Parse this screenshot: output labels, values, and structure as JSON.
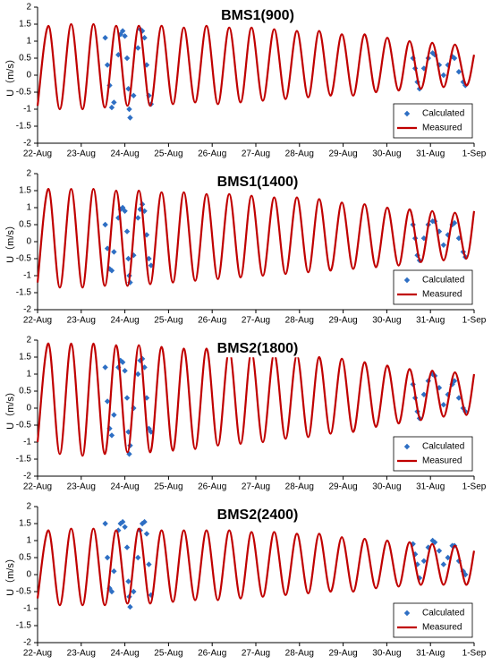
{
  "chart_data": [
    {
      "type": "line",
      "title": "BMS1(900)",
      "ylabel": "U（m/s）",
      "xlim": [
        0,
        10
      ],
      "ylim": [
        -2,
        2
      ],
      "yticks": [
        -2,
        -1.5,
        -1,
        -0.5,
        0,
        0.5,
        1,
        1.5,
        2
      ],
      "xticks": [
        {
          "value": 0,
          "label": "22-Aug"
        },
        {
          "value": 1,
          "label": "23-Aug"
        },
        {
          "value": 2,
          "label": "24-Aug"
        },
        {
          "value": 3,
          "label": "25-Aug"
        },
        {
          "value": 4,
          "label": "26-Aug"
        },
        {
          "value": 5,
          "label": "27-Aug"
        },
        {
          "value": 6,
          "label": "28-Aug"
        },
        {
          "value": 7,
          "label": "29-Aug"
        },
        {
          "value": 8,
          "label": "30-Aug"
        },
        {
          "value": 9,
          "label": "31-Aug"
        },
        {
          "value": 10,
          "label": "1-Sep"
        }
      ],
      "legend": "lower right",
      "series": [
        {
          "name": "Calculated",
          "color": "#2e6fc4",
          "mode": "markers",
          "x": [
            1.55,
            1.6,
            1.65,
            1.7,
            1.75,
            1.85,
            1.9,
            1.95,
            2.0,
            2.05,
            2.08,
            2.1,
            2.12,
            2.2,
            2.3,
            2.35,
            2.4,
            2.45,
            2.5,
            2.55,
            2.6,
            8.6,
            8.65,
            8.7,
            8.75,
            8.85,
            8.95,
            9.05,
            9.1,
            9.2,
            9.3,
            9.4,
            9.5,
            9.55,
            9.65,
            9.75,
            9.8
          ],
          "values": [
            1.1,
            0.3,
            -0.3,
            -0.95,
            -0.8,
            0.6,
            1.2,
            1.3,
            1.15,
            0.5,
            -0.4,
            -1.0,
            -1.25,
            -0.6,
            0.8,
            1.35,
            1.3,
            1.1,
            0.3,
            -0.6,
            -0.85,
            0.5,
            0.2,
            -0.2,
            -0.4,
            0.2,
            0.5,
            0.65,
            0.6,
            0.3,
            0.0,
            0.3,
            0.55,
            0.5,
            0.1,
            -0.2,
            -0.3
          ]
        },
        {
          "name": "Measured",
          "color": "#c00000",
          "mode": "line",
          "x": [
            0,
            0.25,
            0.51,
            0.77,
            1.03,
            1.28,
            1.54,
            1.8,
            2.06,
            2.32,
            2.58,
            2.84,
            3.1,
            3.35,
            3.61,
            3.87,
            4.13,
            4.39,
            4.65,
            4.9,
            5.16,
            5.42,
            5.68,
            5.94,
            6.2,
            6.45,
            6.71,
            6.97,
            7.23,
            7.49,
            7.75,
            8.01,
            8.27,
            8.52,
            8.78,
            9.04,
            9.3,
            9.56,
            9.82,
            10
          ],
          "values": [
            -0.9,
            1.45,
            -1.0,
            1.5,
            -1.0,
            1.5,
            -0.95,
            1.45,
            -0.9,
            1.45,
            -0.9,
            1.45,
            -0.85,
            1.4,
            -0.8,
            1.45,
            -0.85,
            1.4,
            -0.8,
            1.4,
            -0.75,
            1.35,
            -0.7,
            1.3,
            -0.65,
            1.3,
            -0.6,
            1.2,
            -0.6,
            1.2,
            -0.5,
            1.1,
            -0.45,
            1.0,
            -0.4,
            0.95,
            -0.35,
            0.9,
            -0.3,
            0.6
          ]
        }
      ]
    },
    {
      "type": "line",
      "title": "BMS1(1400)",
      "ylabel": "U（m/s）",
      "xlim": [
        0,
        10
      ],
      "ylim": [
        -2,
        2
      ],
      "yticks": [
        -2,
        -1.5,
        -1,
        -0.5,
        0,
        0.5,
        1,
        1.5,
        2
      ],
      "xticks": [
        {
          "value": 0,
          "label": "22-Aug"
        },
        {
          "value": 1,
          "label": "23-Aug"
        },
        {
          "value": 2,
          "label": "24-Aug"
        },
        {
          "value": 3,
          "label": "25-Aug"
        },
        {
          "value": 4,
          "label": "26-Aug"
        },
        {
          "value": 5,
          "label": "27-Aug"
        },
        {
          "value": 6,
          "label": "28-Aug"
        },
        {
          "value": 7,
          "label": "29-Aug"
        },
        {
          "value": 8,
          "label": "30-Aug"
        },
        {
          "value": 9,
          "label": "31-Aug"
        },
        {
          "value": 10,
          "label": "1-Sep"
        }
      ],
      "legend": "lower right",
      "series": [
        {
          "name": "Calculated",
          "color": "#2e6fc4",
          "mode": "markers",
          "x": [
            1.55,
            1.6,
            1.65,
            1.7,
            1.75,
            1.85,
            1.9,
            1.95,
            2.0,
            2.05,
            2.08,
            2.1,
            2.12,
            2.2,
            2.3,
            2.35,
            2.4,
            2.45,
            2.5,
            2.55,
            2.6,
            8.6,
            8.65,
            8.7,
            8.75,
            8.85,
            8.95,
            9.05,
            9.1,
            9.2,
            9.3,
            9.4,
            9.5,
            9.55,
            9.65,
            9.75,
            9.8
          ],
          "values": [
            0.5,
            -0.2,
            -0.8,
            -0.85,
            -0.3,
            0.7,
            0.95,
            1.0,
            0.9,
            0.3,
            -0.5,
            -1.0,
            -1.2,
            -0.4,
            0.7,
            0.95,
            1.1,
            0.9,
            0.2,
            -0.5,
            -0.7,
            0.5,
            0.1,
            -0.4,
            -0.55,
            0.1,
            0.5,
            0.6,
            0.6,
            0.3,
            -0.1,
            0.2,
            0.5,
            0.55,
            0.1,
            -0.3,
            -0.45
          ]
        },
        {
          "name": "Measured",
          "color": "#c00000",
          "mode": "line",
          "x": [
            0,
            0.25,
            0.51,
            0.77,
            1.03,
            1.28,
            1.54,
            1.8,
            2.06,
            2.32,
            2.58,
            2.84,
            3.1,
            3.35,
            3.61,
            3.87,
            4.13,
            4.39,
            4.65,
            4.9,
            5.16,
            5.42,
            5.68,
            5.94,
            6.2,
            6.45,
            6.71,
            6.97,
            7.23,
            7.49,
            7.75,
            8.01,
            8.27,
            8.52,
            8.78,
            9.04,
            9.3,
            9.56,
            9.82,
            10
          ],
          "values": [
            -1.2,
            1.55,
            -1.35,
            1.55,
            -1.35,
            1.55,
            -1.3,
            1.5,
            -1.3,
            1.5,
            -1.25,
            1.45,
            -1.2,
            1.45,
            -1.15,
            1.4,
            -1.1,
            1.4,
            -1.05,
            1.35,
            -1.0,
            1.3,
            -0.95,
            1.3,
            -0.9,
            1.25,
            -0.85,
            1.15,
            -0.8,
            1.1,
            -0.75,
            1.0,
            -0.7,
            0.95,
            -0.6,
            0.9,
            -0.55,
            0.85,
            -0.5,
            0.9
          ]
        }
      ]
    },
    {
      "type": "line",
      "title": "BMS2(1800)",
      "ylabel": "U（m/s）",
      "xlim": [
        0,
        10
      ],
      "ylim": [
        -2,
        2
      ],
      "yticks": [
        -2,
        -1.5,
        -1,
        -0.5,
        0,
        0.5,
        1,
        1.5,
        2
      ],
      "xticks": [
        {
          "value": 0,
          "label": "22-Aug"
        },
        {
          "value": 1,
          "label": "23-Aug"
        },
        {
          "value": 2,
          "label": "24-Aug"
        },
        {
          "value": 3,
          "label": "25-Aug"
        },
        {
          "value": 4,
          "label": "26-Aug"
        },
        {
          "value": 5,
          "label": "27-Aug"
        },
        {
          "value": 6,
          "label": "28-Aug"
        },
        {
          "value": 7,
          "label": "29-Aug"
        },
        {
          "value": 8,
          "label": "30-Aug"
        },
        {
          "value": 9,
          "label": "31-Aug"
        },
        {
          "value": 10,
          "label": "1-Sep"
        }
      ],
      "legend": "lower right",
      "series": [
        {
          "name": "Calculated",
          "color": "#2e6fc4",
          "mode": "markers",
          "x": [
            1.55,
            1.6,
            1.65,
            1.7,
            1.75,
            1.85,
            1.9,
            1.95,
            2.0,
            2.05,
            2.08,
            2.1,
            2.12,
            2.2,
            2.3,
            2.35,
            2.4,
            2.45,
            2.5,
            2.55,
            2.6,
            8.6,
            8.65,
            8.7,
            8.75,
            8.85,
            8.95,
            9.05,
            9.1,
            9.2,
            9.3,
            9.4,
            9.5,
            9.55,
            9.65,
            9.75,
            9.8
          ],
          "values": [
            1.2,
            0.2,
            -0.6,
            -0.8,
            -0.2,
            1.2,
            1.4,
            1.35,
            1.1,
            0.3,
            -0.7,
            -1.35,
            -1.1,
            0.0,
            1.0,
            1.4,
            1.45,
            1.2,
            0.3,
            -0.6,
            -0.7,
            0.7,
            0.3,
            -0.1,
            -0.3,
            0.4,
            0.8,
            1.0,
            0.95,
            0.6,
            0.1,
            0.4,
            0.7,
            0.8,
            0.3,
            0.0,
            -0.1
          ]
        },
        {
          "name": "Measured",
          "color": "#c00000",
          "mode": "line",
          "x": [
            0,
            0.25,
            0.51,
            0.77,
            1.03,
            1.28,
            1.54,
            1.8,
            2.06,
            2.32,
            2.58,
            2.84,
            3.1,
            3.35,
            3.61,
            3.87,
            4.13,
            4.39,
            4.65,
            4.9,
            5.16,
            5.42,
            5.68,
            5.94,
            6.2,
            6.45,
            6.71,
            6.97,
            7.23,
            7.49,
            7.75,
            8.01,
            8.27,
            8.52,
            8.78,
            9.04,
            9.3,
            9.56,
            9.82,
            10
          ],
          "values": [
            -1.0,
            1.9,
            -1.35,
            1.9,
            -1.4,
            1.9,
            -1.35,
            1.85,
            -1.3,
            1.85,
            -1.3,
            1.8,
            -1.25,
            1.75,
            -1.2,
            1.75,
            -1.1,
            1.7,
            -1.05,
            1.65,
            -1.0,
            1.6,
            -0.9,
            1.55,
            -0.85,
            1.5,
            -0.75,
            1.45,
            -0.7,
            1.35,
            -0.55,
            1.25,
            -0.45,
            1.15,
            -0.35,
            1.1,
            -0.25,
            1.05,
            -0.2,
            1.0
          ]
        }
      ]
    },
    {
      "type": "line",
      "title": "BMS2(2400)",
      "ylabel": "U（m/s）",
      "xlim": [
        0,
        10
      ],
      "ylim": [
        -2,
        2
      ],
      "yticks": [
        -2,
        -1.5,
        -1,
        -0.5,
        0,
        0.5,
        1,
        1.5,
        2
      ],
      "xticks": [
        {
          "value": 0,
          "label": "22-Aug"
        },
        {
          "value": 1,
          "label": "23-Aug"
        },
        {
          "value": 2,
          "label": "24-Aug"
        },
        {
          "value": 3,
          "label": "25-Aug"
        },
        {
          "value": 4,
          "label": "26-Aug"
        },
        {
          "value": 5,
          "label": "27-Aug"
        },
        {
          "value": 6,
          "label": "28-Aug"
        },
        {
          "value": 7,
          "label": "29-Aug"
        },
        {
          "value": 8,
          "label": "30-Aug"
        },
        {
          "value": 9,
          "label": "31-Aug"
        },
        {
          "value": 10,
          "label": "1-Sep"
        }
      ],
      "legend": "lower right",
      "series": [
        {
          "name": "Calculated",
          "color": "#2e6fc4",
          "mode": "markers",
          "x": [
            1.55,
            1.6,
            1.65,
            1.7,
            1.75,
            1.85,
            1.9,
            1.95,
            2.0,
            2.05,
            2.08,
            2.1,
            2.12,
            2.2,
            2.3,
            2.35,
            2.4,
            2.45,
            2.5,
            2.55,
            2.6,
            8.6,
            8.65,
            8.7,
            8.75,
            8.85,
            8.95,
            9.05,
            9.1,
            9.2,
            9.3,
            9.4,
            9.5,
            9.55,
            9.65,
            9.75,
            9.8
          ],
          "values": [
            1.5,
            0.5,
            -0.4,
            -0.5,
            0.1,
            1.3,
            1.5,
            1.55,
            1.4,
            0.8,
            -0.2,
            -0.65,
            -0.95,
            -0.5,
            0.5,
            1.3,
            1.5,
            1.55,
            1.2,
            0.3,
            -0.6,
            0.9,
            0.6,
            0.3,
            -0.1,
            0.4,
            0.8,
            1.0,
            0.95,
            0.7,
            0.3,
            0.5,
            0.85,
            0.85,
            0.4,
            0.1,
            0.0
          ]
        },
        {
          "name": "Measured",
          "color": "#c00000",
          "mode": "line",
          "x": [
            0,
            0.25,
            0.51,
            0.77,
            1.03,
            1.28,
            1.54,
            1.8,
            2.06,
            2.32,
            2.58,
            2.84,
            3.1,
            3.35,
            3.61,
            3.87,
            4.13,
            4.39,
            4.65,
            4.9,
            5.16,
            5.42,
            5.68,
            5.94,
            6.2,
            6.45,
            6.71,
            6.97,
            7.23,
            7.49,
            7.75,
            8.01,
            8.27,
            8.52,
            8.78,
            9.04,
            9.3,
            9.56,
            9.82,
            10
          ],
          "values": [
            -0.7,
            1.3,
            -0.9,
            1.35,
            -0.9,
            1.35,
            -0.9,
            1.3,
            -0.85,
            1.35,
            -0.85,
            1.3,
            -0.8,
            1.3,
            -0.75,
            1.3,
            -0.75,
            1.3,
            -0.7,
            1.25,
            -0.65,
            1.25,
            -0.6,
            1.2,
            -0.55,
            1.2,
            -0.5,
            1.1,
            -0.5,
            1.05,
            -0.4,
            1.0,
            -0.35,
            0.95,
            -0.3,
            0.9,
            -0.3,
            0.85,
            -0.3,
            0.7
          ]
        }
      ]
    }
  ]
}
